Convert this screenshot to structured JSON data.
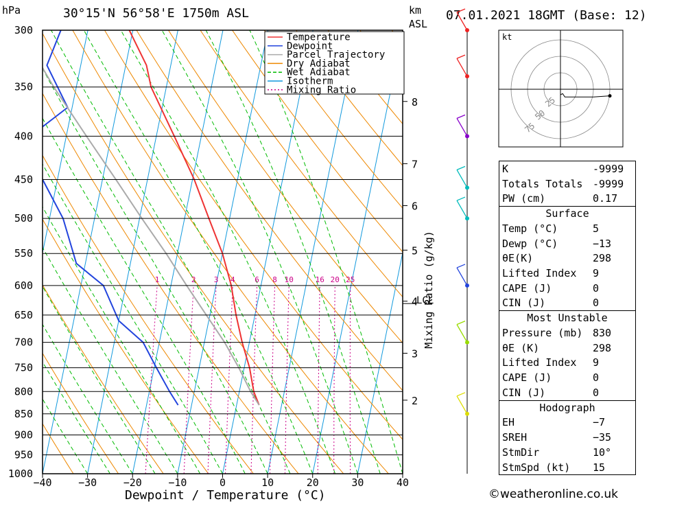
{
  "header": {
    "location": "30°15'N  56°58'E  1750m  ASL",
    "datetime": "07.01.2021  18GMT  (Base: 12)"
  },
  "axes": {
    "y_unit": "hPa",
    "km_label_1": "km",
    "km_label_2": "ASL",
    "xlabel": "Dewpoint / Temperature (°C)",
    "mixing_label": "Mixing Ratio (g/kg)",
    "lcl_label": "LCL",
    "hodo_unit": "kt"
  },
  "legend": [
    {
      "label": "Temperature",
      "color": "#ee3333",
      "style": "solid"
    },
    {
      "label": "Dewpoint",
      "color": "#2244dd",
      "style": "solid"
    },
    {
      "label": "Parcel Trajectory",
      "color": "#aaaaaa",
      "style": "solid"
    },
    {
      "label": "Dry Adiabat",
      "color": "#ee8800",
      "style": "solid"
    },
    {
      "label": "Wet Adiabat",
      "color": "#00bb00",
      "style": "dashed"
    },
    {
      "label": "Isotherm",
      "color": "#1199dd",
      "style": "solid"
    },
    {
      "label": "Mixing Ratio",
      "color": "#cc0088",
      "style": "dotted"
    }
  ],
  "chart_data": {
    "type": "line",
    "title": "",
    "xlabel": "Dewpoint / Temperature (°C)",
    "ylabel": "hPa",
    "pressure_ticks": [
      300,
      350,
      400,
      450,
      500,
      550,
      600,
      650,
      700,
      750,
      800,
      850,
      900,
      950,
      1000
    ],
    "temp_ticks": [
      -40,
      -30,
      -20,
      -10,
      0,
      10,
      20,
      30,
      40
    ],
    "temp_tick_labels": [
      "−40",
      "−30",
      "−20",
      "−10",
      "0",
      "10",
      "20",
      "30",
      "40"
    ],
    "xlim": [
      -40,
      40
    ],
    "ylim": [
      1000,
      300
    ],
    "skew": "skew-T",
    "km_ticks": [
      {
        "label": "8",
        "p": 364
      },
      {
        "label": "7",
        "p": 431
      },
      {
        "label": "6",
        "p": 483
      },
      {
        "label": "5",
        "p": 545
      },
      {
        "label": "4",
        "p": 626
      },
      {
        "label": "3",
        "p": 721
      },
      {
        "label": "2",
        "p": 819
      }
    ],
    "mixing_ratios": [
      1,
      2,
      3,
      4,
      6,
      8,
      10,
      16,
      20,
      25
    ],
    "mixing_ratio_labels": [
      "1",
      "2",
      "3",
      "4",
      "6",
      "8",
      "10",
      "16",
      "20",
      "25"
    ],
    "lcl_pressure": 630,
    "series": [
      {
        "name": "Temperature",
        "color": "#ee3333",
        "points": [
          [
            830,
            5
          ],
          [
            800,
            3.2
          ],
          [
            750,
            1.2
          ],
          [
            700,
            -1.6
          ],
          [
            650,
            -4.2
          ],
          [
            600,
            -6.6
          ],
          [
            550,
            -10
          ],
          [
            500,
            -14.6
          ],
          [
            450,
            -19.6
          ],
          [
            400,
            -26
          ],
          [
            350,
            -33.4
          ],
          [
            330,
            -35.4
          ],
          [
            300,
            -40.8
          ]
        ]
      },
      {
        "name": "Dewpoint",
        "color": "#2244dd",
        "points": [
          [
            830,
            -13
          ],
          [
            800,
            -15.5
          ],
          [
            750,
            -19.5
          ],
          [
            700,
            -23.6
          ],
          [
            660,
            -30
          ],
          [
            600,
            -35
          ],
          [
            565,
            -42
          ],
          [
            500,
            -47
          ],
          [
            430,
            -56
          ],
          [
            400,
            -58
          ],
          [
            370,
            -51
          ],
          [
            330,
            -57.5
          ],
          [
            300,
            -56
          ]
        ]
      },
      {
        "name": "Parcel Trajectory",
        "color": "#aaaaaa",
        "points": [
          [
            830,
            5
          ],
          [
            800,
            2.5
          ],
          [
            750,
            -1.2
          ],
          [
            700,
            -5.5
          ],
          [
            650,
            -10.8
          ],
          [
            600,
            -16.5
          ],
          [
            550,
            -22.5
          ],
          [
            500,
            -29.5
          ],
          [
            450,
            -37
          ],
          [
            400,
            -45.5
          ],
          [
            350,
            -55
          ],
          [
            300,
            -65
          ]
        ]
      }
    ]
  },
  "hodograph": {
    "ring_labels": [
      "25",
      "50",
      "75"
    ],
    "trace_uv": [
      [
        0,
        -5
      ],
      [
        2,
        -4
      ],
      [
        4,
        -7
      ],
      [
        10,
        -7
      ],
      [
        30,
        -7
      ],
      [
        45,
        -6
      ]
    ]
  },
  "winds": [
    {
      "p": 300,
      "color": "#ee2222"
    },
    {
      "p": 340,
      "color": "#ee2222"
    },
    {
      "p": 400,
      "color": "#8800cc"
    },
    {
      "p": 460,
      "color": "#00bbbb"
    },
    {
      "p": 500,
      "color": "#00bbbb"
    },
    {
      "p": 600,
      "color": "#2244dd"
    },
    {
      "p": 700,
      "color": "#99dd00"
    },
    {
      "p": 850,
      "color": "#dddd00"
    }
  ],
  "indices": {
    "top": [
      {
        "label": "K",
        "value": "-9999"
      },
      {
        "label": "Totals Totals",
        "value": "-9999"
      },
      {
        "label": "PW (cm)",
        "value": "0.17"
      }
    ],
    "surface": {
      "title": "Surface",
      "rows": [
        {
          "label": "Temp (°C)",
          "value": "5"
        },
        {
          "label": "Dewp (°C)",
          "value": "−13"
        },
        {
          "label": "θE(K)",
          "value": "298"
        },
        {
          "label": "Lifted Index",
          "value": "9"
        },
        {
          "label": "CAPE (J)",
          "value": "0"
        },
        {
          "label": "CIN (J)",
          "value": "0"
        }
      ]
    },
    "most_unstable": {
      "title": "Most Unstable",
      "rows": [
        {
          "label": "Pressure (mb)",
          "value": "830"
        },
        {
          "label": "θE (K)",
          "value": "298"
        },
        {
          "label": "Lifted Index",
          "value": "9"
        },
        {
          "label": "CAPE (J)",
          "value": "0"
        },
        {
          "label": "CIN (J)",
          "value": "0"
        }
      ]
    },
    "hodograph": {
      "title": "Hodograph",
      "rows": [
        {
          "label": "EH",
          "value": "−7"
        },
        {
          "label": "SREH",
          "value": "−35"
        },
        {
          "label": "StmDir",
          "value": "10°"
        },
        {
          "label": "StmSpd (kt)",
          "value": "15"
        }
      ]
    }
  },
  "copyright": "©weatheronline.co.uk"
}
